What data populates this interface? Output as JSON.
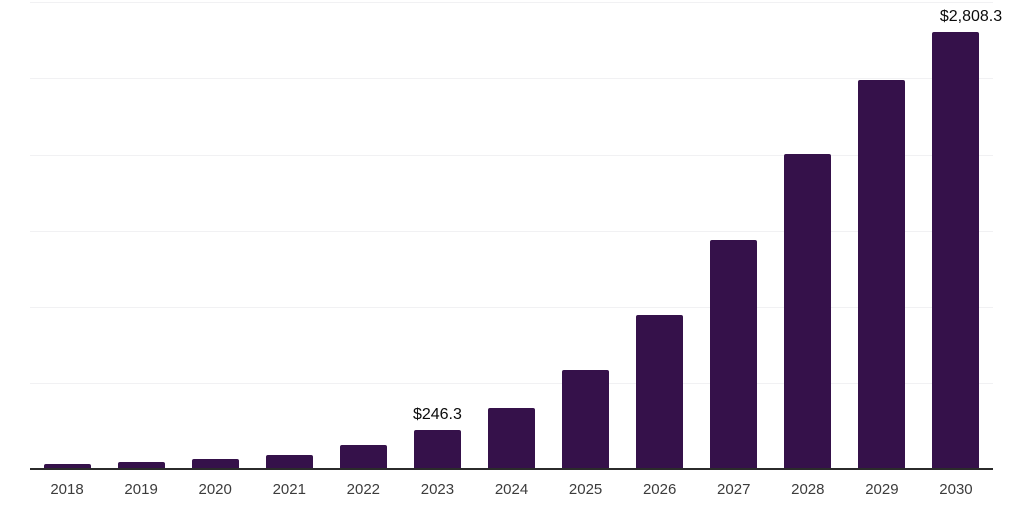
{
  "chart_data": {
    "type": "bar",
    "title": "",
    "xlabel": "",
    "ylabel": "",
    "categories": [
      "2018",
      "2019",
      "2020",
      "2021",
      "2022",
      "2023",
      "2024",
      "2025",
      "2026",
      "2027",
      "2028",
      "2029",
      "2030"
    ],
    "values": [
      26,
      39,
      60,
      86,
      146,
      246.3,
      385,
      634,
      988,
      1467,
      2020,
      2500,
      2808.3
    ],
    "data_labels": {
      "2023": "$246.3",
      "2030": "$2,808.3"
    },
    "ylim": [
      0,
      3000
    ],
    "grid": "horizontal",
    "gridline_count": 6,
    "legend": "none",
    "colors": {
      "bar": "#35114a",
      "gridline": "#f1f1f3",
      "axis": "#2b2b2b",
      "year_label": "#3c3c3c",
      "value_label": "#0b0b0b",
      "background": "#ffffff"
    }
  }
}
